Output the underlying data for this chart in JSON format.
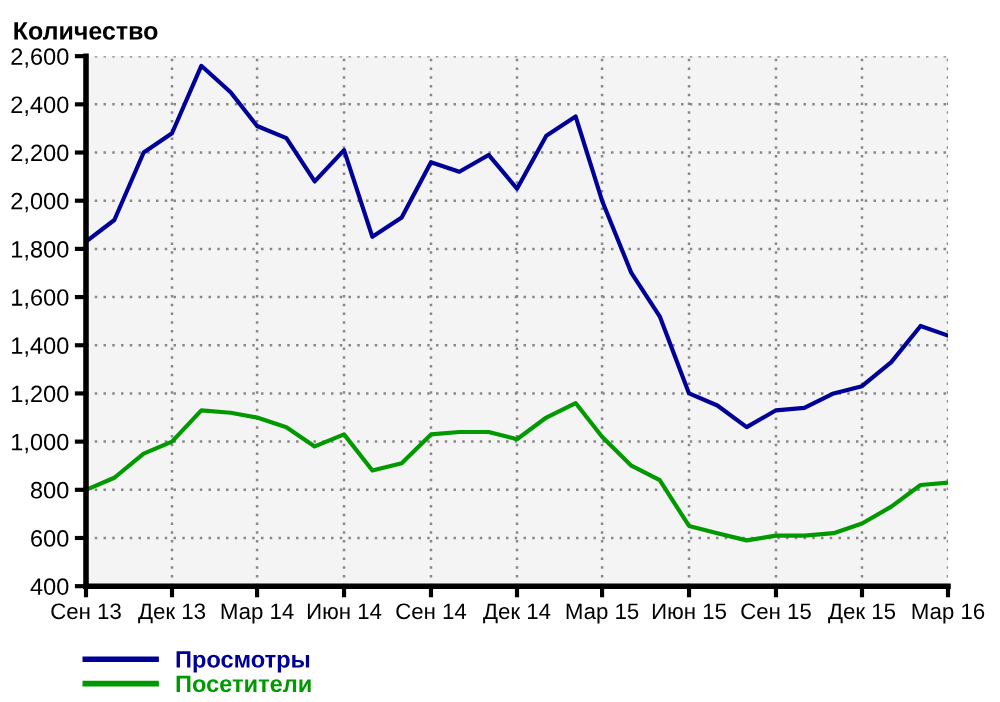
{
  "chart_data": {
    "type": "line",
    "title": "Количество",
    "x": [
      "2013-09",
      "2013-10",
      "2013-11",
      "2013-12",
      "2014-01",
      "2014-02",
      "2014-03",
      "2014-04",
      "2014-05",
      "2014-06",
      "2014-07",
      "2014-08",
      "2014-09",
      "2014-10",
      "2014-11",
      "2014-12",
      "2015-01",
      "2015-02",
      "2015-03",
      "2015-04",
      "2015-05",
      "2015-06",
      "2015-07",
      "2015-08",
      "2015-09",
      "2015-10",
      "2015-11",
      "2015-12",
      "2016-01",
      "2016-02",
      "2016-03"
    ],
    "series": [
      {
        "name": "Просмотры",
        "color": "#000099",
        "values": [
          1830,
          1920,
          2200,
          2280,
          2560,
          2450,
          2310,
          2260,
          2080,
          2210,
          1850,
          1930,
          2160,
          2120,
          2190,
          2050,
          2270,
          2350,
          2000,
          1700,
          1520,
          1200,
          1150,
          1060,
          1130,
          1140,
          1200,
          1230,
          1330,
          1480,
          1440
        ]
      },
      {
        "name": "Посетители",
        "color": "#009900",
        "values": [
          800,
          850,
          950,
          1000,
          1130,
          1120,
          1100,
          1060,
          980,
          1030,
          880,
          910,
          1030,
          1040,
          1040,
          1010,
          1100,
          1160,
          1020,
          900,
          840,
          650,
          620,
          590,
          610,
          610,
          620,
          660,
          730,
          820,
          830
        ]
      }
    ],
    "xlim": [
      "2013-09",
      "2016-03"
    ],
    "xticks": [
      {
        "value": "2013-09",
        "label": "Сен 13"
      },
      {
        "value": "2013-12",
        "label": "Дек 13"
      },
      {
        "value": "2014-03",
        "label": "Мар 14"
      },
      {
        "value": "2014-06",
        "label": "Июн 14"
      },
      {
        "value": "2014-09",
        "label": "Сен 14"
      },
      {
        "value": "2014-12",
        "label": "Дек 14"
      },
      {
        "value": "2015-03",
        "label": "Мар 15"
      },
      {
        "value": "2015-06",
        "label": "Июн 15"
      },
      {
        "value": "2015-09",
        "label": "Сен 15"
      },
      {
        "value": "2015-12",
        "label": "Дек 15"
      },
      {
        "value": "2016-03",
        "label": "Мар 16"
      }
    ],
    "ylim": [
      400,
      2600
    ],
    "yticks": [
      400,
      600,
      800,
      {
        "value": 1000,
        "label": "1,000"
      },
      {
        "value": 1200,
        "label": "1,200"
      },
      {
        "value": 1400,
        "label": "1,400"
      },
      {
        "value": 1600,
        "label": "1,600"
      },
      {
        "value": 1800,
        "label": "1,800"
      },
      {
        "value": 2000,
        "label": "2,000"
      },
      {
        "value": 2200,
        "label": "2,200"
      },
      {
        "value": 2400,
        "label": "2,400"
      },
      {
        "value": 2600,
        "label": "2,600"
      }
    ],
    "grid": true,
    "legend": "bottom left",
    "marker": "none",
    "line_style": "solid"
  }
}
